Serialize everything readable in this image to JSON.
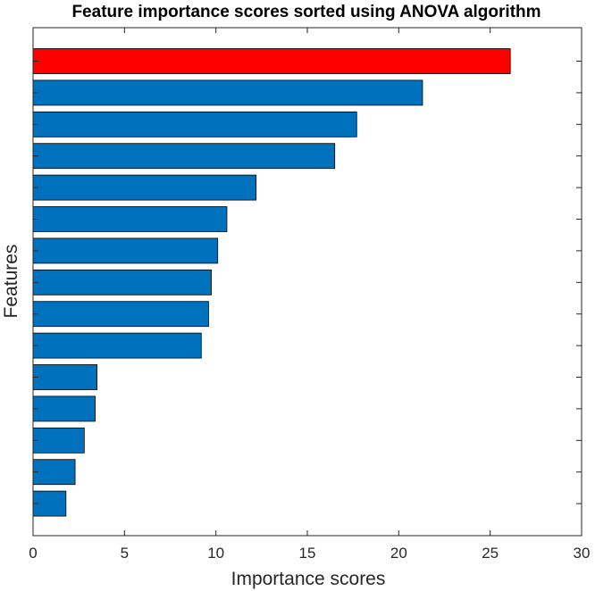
{
  "chart_data": {
    "type": "bar",
    "orientation": "horizontal",
    "title": "Feature importance scores sorted using ANOVA algorithm",
    "xlabel": "Importance scores",
    "ylabel": "Features",
    "xlim": [
      0,
      30
    ],
    "xticks": [
      0,
      5,
      10,
      15,
      20,
      25,
      30
    ],
    "grid": false,
    "values": [
      26.1,
      21.3,
      17.7,
      16.5,
      12.2,
      10.6,
      10.1,
      9.75,
      9.6,
      9.2,
      3.5,
      3.4,
      2.8,
      2.3,
      1.8
    ],
    "colors": {
      "highlight": "#ff0000",
      "bar": "#0072bd",
      "edge": "#000000",
      "axis": "#262626"
    }
  }
}
